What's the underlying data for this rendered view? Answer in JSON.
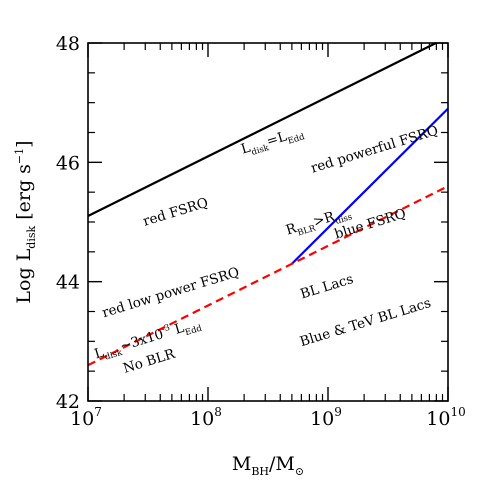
{
  "chart_data": {
    "type": "line",
    "xlabel": {
      "main": "M",
      "sub1": "BH",
      "sep": "/M",
      "sub2": "⊙"
    },
    "ylabel": {
      "main": "Log L",
      "sub": "disk",
      "rest": " [erg s",
      "sup": "−1",
      "end": "]"
    },
    "x_scale": "log",
    "xlim": [
      10000000.0,
      10000000000.0
    ],
    "ylim": [
      42,
      48
    ],
    "x_ticks": [
      {
        "value": 10000000.0,
        "base": "10",
        "exp": "7"
      },
      {
        "value": 100000000.0,
        "base": "10",
        "exp": "8"
      },
      {
        "value": 1000000000.0,
        "base": "10",
        "exp": "9"
      },
      {
        "value": 10000000000.0,
        "base": "10",
        "exp": "10"
      }
    ],
    "y_ticks": [
      {
        "value": 42,
        "label": "42"
      },
      {
        "value": 44,
        "label": "44"
      },
      {
        "value": 46,
        "label": "46"
      },
      {
        "value": 48,
        "label": "48"
      }
    ],
    "series": [
      {
        "style": "solid",
        "color": "#000000",
        "x": [
          10000000.0,
          10000000000.0
        ],
        "y": [
          45.1,
          48.1
        ]
      },
      {
        "style": "solid",
        "color": "#0000ff",
        "x": [
          500000000.0,
          10000000000.0
        ],
        "y": [
          44.3,
          46.9
        ]
      },
      {
        "style": "dashed",
        "color": "#ff0000",
        "x": [
          10000000.0,
          10000000000.0
        ],
        "y": [
          42.6,
          45.6
        ]
      }
    ],
    "annotations": [
      {
        "id": "ledd",
        "parts": [
          {
            "t": "L"
          },
          {
            "t": "disk",
            "sub": true
          },
          {
            "t": "=L"
          },
          {
            "t": "Edd",
            "sub": true
          }
        ],
        "x": 350000000.0,
        "y": 46.3,
        "angle": -17
      },
      {
        "id": "red-powerful-fsrq",
        "parts": [
          {
            "t": "red powerful FSRQ"
          }
        ],
        "x": 2500000000.0,
        "y": 46.15,
        "angle": -17
      },
      {
        "id": "red-fsrq",
        "parts": [
          {
            "t": "red FSRQ"
          }
        ],
        "x": 55000000.0,
        "y": 45.1,
        "angle": -17
      },
      {
        "id": "rblr-rdiss",
        "parts": [
          {
            "t": "R"
          },
          {
            "t": "BLR",
            "sub": true
          },
          {
            "t": ">R"
          },
          {
            "t": "diss",
            "sub": true
          }
        ],
        "x": 850000000.0,
        "y": 44.95,
        "angle": -17
      },
      {
        "id": "blue-fsrq",
        "parts": [
          {
            "t": "blue FSRQ"
          }
        ],
        "x": 2300000000.0,
        "y": 44.9,
        "angle": -17
      },
      {
        "id": "bl-lacs",
        "parts": [
          {
            "t": "BL Lacs"
          }
        ],
        "x": 1000000000.0,
        "y": 43.85,
        "angle": -17
      },
      {
        "id": "red-low-power-fsrq",
        "parts": [
          {
            "t": "red low power FSRQ"
          }
        ],
        "x": 50000000.0,
        "y": 43.75,
        "angle": -17
      },
      {
        "id": "blue-tev-bl-lacs",
        "parts": [
          {
            "t": "Blue & TeV BL Lacs"
          }
        ],
        "x": 2100000000.0,
        "y": 43.25,
        "angle": -17
      },
      {
        "id": "ldisk-3e-3-ledd",
        "parts": [
          {
            "t": "L"
          },
          {
            "t": "disk",
            "sub": true
          },
          {
            "t": "~3x10"
          },
          {
            "t": "-3",
            "sup": true
          },
          {
            "t": " L"
          },
          {
            "t": "Edd",
            "sub": true
          }
        ],
        "x": 32000000.0,
        "y": 42.98,
        "angle": -17
      },
      {
        "id": "no-blr",
        "parts": [
          {
            "t": "No BLR"
          }
        ],
        "x": 33000000.0,
        "y": 42.6,
        "angle": -17
      }
    ]
  }
}
